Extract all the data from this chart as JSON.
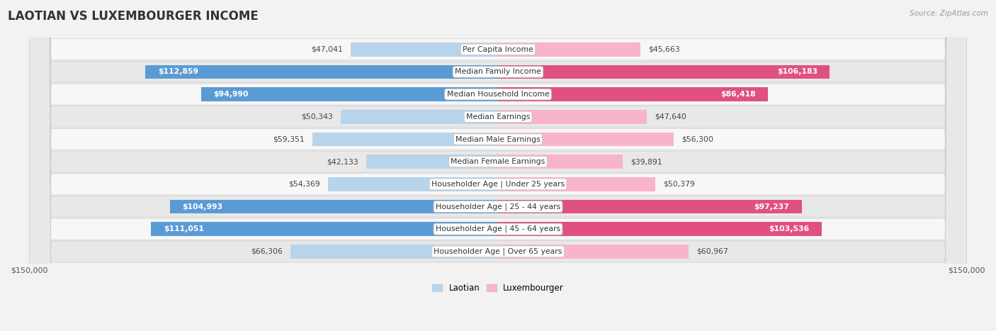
{
  "title": "LAOTIAN VS LUXEMBOURGER INCOME",
  "source": "Source: ZipAtlas.com",
  "categories": [
    "Per Capita Income",
    "Median Family Income",
    "Median Household Income",
    "Median Earnings",
    "Median Male Earnings",
    "Median Female Earnings",
    "Householder Age | Under 25 years",
    "Householder Age | 25 - 44 years",
    "Householder Age | 45 - 64 years",
    "Householder Age | Over 65 years"
  ],
  "laotian": [
    47041,
    112859,
    94990,
    50343,
    59351,
    42133,
    54369,
    104993,
    111051,
    66306
  ],
  "luxembourger": [
    45663,
    106183,
    86418,
    47640,
    56300,
    39891,
    50379,
    97237,
    103536,
    60967
  ],
  "laotian_labels": [
    "$47,041",
    "$112,859",
    "$94,990",
    "$50,343",
    "$59,351",
    "$42,133",
    "$54,369",
    "$104,993",
    "$111,051",
    "$66,306"
  ],
  "luxembourger_labels": [
    "$45,663",
    "$106,183",
    "$86,418",
    "$47,640",
    "$56,300",
    "$39,891",
    "$50,379",
    "$97,237",
    "$103,536",
    "$60,967"
  ],
  "max_val": 150000,
  "bar_height": 0.62,
  "blue_light": "#b8d4ea",
  "blue_dark": "#5b9bd5",
  "pink_light": "#f8b4c8",
  "pink_dark": "#e05080",
  "bg_color": "#f2f2f2",
  "row_bg_even": "#f7f7f7",
  "row_bg_odd": "#e8e8e8",
  "title_fontsize": 12,
  "label_fontsize": 7.8,
  "tick_fontsize": 8,
  "legend_fontsize": 8.5,
  "source_fontsize": 7.5,
  "inside_label_threshold": 75000
}
